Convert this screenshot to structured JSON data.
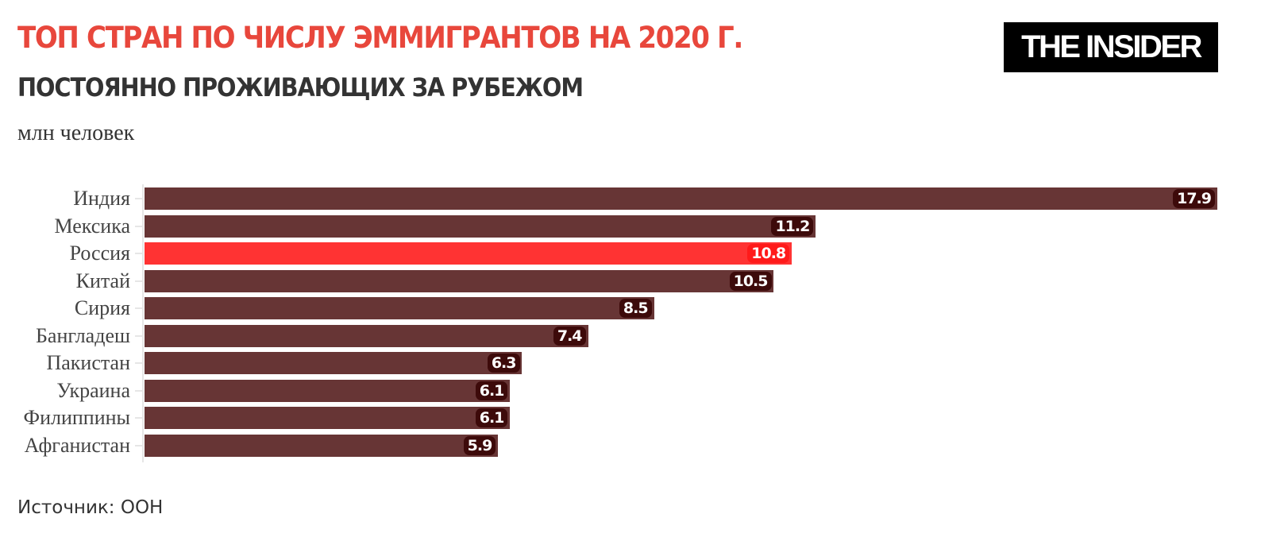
{
  "header": {
    "title": "ТОП СТРАН ПО ЧИСЛУ ЭММИГРАНТОВ НА 2020 Г.",
    "subtitle": "ПОСТОЯННО ПРОЖИВАЮЩИХ ЗА РУБЕЖОМ",
    "units": "млн человек",
    "logo": "THE INSIDER"
  },
  "footer": {
    "source": "Источник: ООН"
  },
  "colors": {
    "title": "#e8473c",
    "bar_default": "#673535",
    "bar_highlight": "#ff3333",
    "label_bg_default": "#3d0a0a",
    "label_bg_highlight": "#ff1a1a"
  },
  "chart_data": {
    "type": "bar",
    "orientation": "horizontal",
    "title": "ТОП СТРАН ПО ЧИСЛУ ЭММИГРАНТОВ НА 2020 Г.",
    "subtitle": "ПОСТОЯННО ПРОЖИВАЮЩИХ ЗА РУБЕЖОМ",
    "xlabel": "",
    "ylabel": "",
    "units": "млн человек",
    "categories": [
      "Индия",
      "Мексика",
      "Россия",
      "Китай",
      "Сирия",
      "Бангладеш",
      "Пакистан",
      "Украина",
      "Филиппины",
      "Афганистан"
    ],
    "values": [
      17.9,
      11.2,
      10.8,
      10.5,
      8.5,
      7.4,
      6.3,
      6.1,
      6.1,
      5.9
    ],
    "value_labels": [
      "17.9",
      "11.2",
      "10.8",
      "10.5",
      "8.5",
      "7.4",
      "6.3",
      "6.1",
      "6.1",
      "5.9"
    ],
    "highlight": [
      "Россия"
    ],
    "xlim": [
      0,
      17.9
    ],
    "grid": false,
    "legend": "none",
    "source": "Источник: ООН"
  }
}
